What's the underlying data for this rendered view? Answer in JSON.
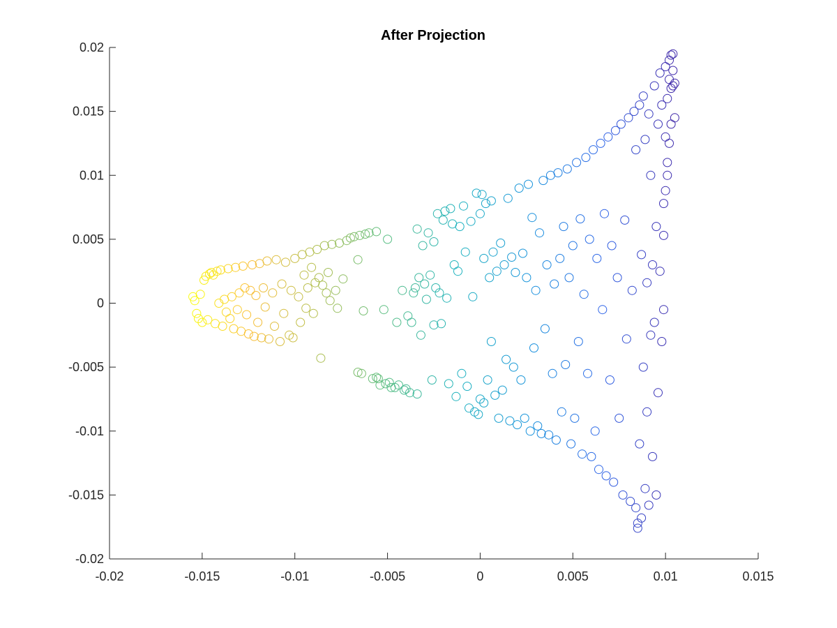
{
  "chart_data": {
    "type": "scatter",
    "title": "After Projection",
    "xlabel": "",
    "ylabel": "",
    "xlim": [
      -0.02,
      0.015
    ],
    "ylim": [
      -0.02,
      0.02
    ],
    "xticks": [
      -0.02,
      -0.015,
      -0.01,
      -0.005,
      0,
      0.005,
      0.01,
      0.015
    ],
    "xtick_labels": [
      "-0.02",
      "-0.015",
      "-0.01",
      "-0.005",
      "0",
      "0.005",
      "0.01",
      "0.015"
    ],
    "yticks": [
      -0.02,
      -0.015,
      -0.01,
      -0.005,
      0,
      0.005,
      0.01,
      0.015,
      0.02
    ],
    "ytick_labels": [
      "-0.02",
      "-0.015",
      "-0.01",
      "-0.005",
      "0",
      "0.005",
      "0.01",
      "0.015",
      "0.02"
    ],
    "grid": false,
    "marker": "open-circle",
    "colormap": "parula",
    "color_encoding": "marker color varies from yellow at the left (x ≈ -0.0155) to dark blue at the right (x ≈ 0.0105)",
    "colors": {
      "axis": "#262626",
      "background": "#ffffff"
    },
    "points": [
      [
        -0.0155,
        0.0005
      ],
      [
        -0.0154,
        0.0002
      ],
      [
        -0.0153,
        -0.0008
      ],
      [
        -0.0152,
        -0.0012
      ],
      [
        -0.0151,
        0.0007
      ],
      [
        -0.015,
        -0.0015
      ],
      [
        -0.0149,
        0.0018
      ],
      [
        -0.0148,
        0.0021
      ],
      [
        -0.0147,
        -0.0013
      ],
      [
        -0.0146,
        0.0023
      ],
      [
        -0.0145,
        0.0024
      ],
      [
        -0.0144,
        0.0022
      ],
      [
        -0.0143,
        -0.0016
      ],
      [
        -0.0142,
        0.0025
      ],
      [
        -0.0141,
        0.0
      ],
      [
        -0.014,
        0.0026
      ],
      [
        -0.0139,
        -0.0018
      ],
      [
        -0.0138,
        0.0003
      ],
      [
        -0.0137,
        -0.0007
      ],
      [
        -0.0136,
        0.0027
      ],
      [
        -0.0135,
        -0.0012
      ],
      [
        -0.0134,
        0.0005
      ],
      [
        -0.0133,
        -0.002
      ],
      [
        -0.0132,
        0.0028
      ],
      [
        -0.0131,
        -0.0005
      ],
      [
        -0.013,
        0.0008
      ],
      [
        -0.0129,
        -0.0022
      ],
      [
        -0.0128,
        0.0029
      ],
      [
        -0.0127,
        0.0012
      ],
      [
        -0.0126,
        -0.0009
      ],
      [
        -0.0125,
        -0.0024
      ],
      [
        -0.0124,
        0.001
      ],
      [
        -0.0123,
        0.003
      ],
      [
        -0.0122,
        -0.0026
      ],
      [
        -0.0121,
        0.0006
      ],
      [
        -0.012,
        -0.0015
      ],
      [
        -0.0119,
        0.0031
      ],
      [
        -0.0118,
        -0.0027
      ],
      [
        -0.0117,
        0.0012
      ],
      [
        -0.0116,
        -0.0003
      ],
      [
        -0.0115,
        0.0033
      ],
      [
        -0.0114,
        -0.0028
      ],
      [
        -0.0112,
        0.0008
      ],
      [
        -0.0111,
        -0.0018
      ],
      [
        -0.011,
        0.0034
      ],
      [
        -0.0108,
        -0.003
      ],
      [
        -0.0107,
        0.0015
      ],
      [
        -0.0106,
        -0.0008
      ],
      [
        -0.0105,
        0.0032
      ],
      [
        -0.0103,
        -0.0025
      ],
      [
        -0.0102,
        0.001
      ],
      [
        -0.0101,
        -0.0027
      ],
      [
        -0.01,
        0.0035
      ],
      [
        -0.0098,
        0.0005
      ],
      [
        -0.0097,
        -0.0015
      ],
      [
        -0.0096,
        0.0038
      ],
      [
        -0.0095,
        0.0022
      ],
      [
        -0.0094,
        -0.0004
      ],
      [
        -0.0093,
        0.0012
      ],
      [
        -0.0092,
        0.004
      ],
      [
        -0.0091,
        0.0028
      ],
      [
        -0.009,
        -0.0008
      ],
      [
        -0.0089,
        0.0016
      ],
      [
        -0.0088,
        0.0042
      ],
      [
        -0.0087,
        0.002
      ],
      [
        -0.0086,
        -0.0043
      ],
      [
        -0.0085,
        0.0014
      ],
      [
        -0.0084,
        0.0045
      ],
      [
        -0.0083,
        0.0008
      ],
      [
        -0.0082,
        0.0024
      ],
      [
        -0.0081,
        0.0002
      ],
      [
        -0.008,
        0.0046
      ],
      [
        -0.0078,
        0.001
      ],
      [
        -0.0077,
        -0.0004
      ],
      [
        -0.0076,
        0.0047
      ],
      [
        -0.0074,
        0.0019
      ],
      [
        -0.0072,
        0.0049
      ],
      [
        -0.007,
        0.0051
      ],
      [
        -0.0068,
        0.0052
      ],
      [
        -0.0066,
        -0.0054
      ],
      [
        -0.0066,
        0.0034
      ],
      [
        -0.0065,
        0.0053
      ],
      [
        -0.0064,
        -0.0055
      ],
      [
        -0.0063,
        -0.0006
      ],
      [
        -0.0062,
        0.0054
      ],
      [
        -0.006,
        0.0055
      ],
      [
        -0.0058,
        -0.0059
      ],
      [
        -0.0056,
        0.0056
      ],
      [
        -0.0056,
        -0.0058
      ],
      [
        -0.0055,
        -0.0059
      ],
      [
        -0.0054,
        -0.0064
      ],
      [
        -0.0052,
        -0.0005
      ],
      [
        -0.0051,
        -0.0063
      ],
      [
        -0.005,
        0.005
      ],
      [
        -0.0049,
        -0.0062
      ],
      [
        -0.0048,
        -0.0066
      ],
      [
        -0.0046,
        -0.0066
      ],
      [
        -0.0045,
        -0.0015
      ],
      [
        -0.0044,
        -0.0064
      ],
      [
        -0.0042,
        0.001
      ],
      [
        -0.0041,
        -0.0068
      ],
      [
        -0.004,
        -0.0067
      ],
      [
        -0.0039,
        -0.001
      ],
      [
        -0.0038,
        -0.007
      ],
      [
        -0.0037,
        -0.0015
      ],
      [
        -0.0036,
        0.0008
      ],
      [
        -0.0035,
        0.0012
      ],
      [
        -0.0034,
        0.0058
      ],
      [
        -0.0034,
        -0.0071
      ],
      [
        -0.0033,
        0.002
      ],
      [
        -0.0032,
        -0.0025
      ],
      [
        -0.0031,
        0.0045
      ],
      [
        -0.003,
        0.0015
      ],
      [
        -0.0029,
        0.0003
      ],
      [
        -0.0028,
        0.0055
      ],
      [
        -0.0027,
        0.0022
      ],
      [
        -0.0026,
        -0.006
      ],
      [
        -0.0025,
        0.0048
      ],
      [
        -0.0025,
        -0.0017
      ],
      [
        -0.0024,
        0.0012
      ],
      [
        -0.0023,
        0.007
      ],
      [
        -0.0022,
        0.0008
      ],
      [
        -0.0021,
        -0.0016
      ],
      [
        -0.002,
        0.0065
      ],
      [
        -0.0019,
        0.0072
      ],
      [
        -0.0018,
        0.0004
      ],
      [
        -0.0017,
        -0.0063
      ],
      [
        -0.0016,
        0.0074
      ],
      [
        -0.0015,
        0.0062
      ],
      [
        -0.0014,
        0.003
      ],
      [
        -0.0013,
        -0.0073
      ],
      [
        -0.0012,
        0.0025
      ],
      [
        -0.0011,
        0.006
      ],
      [
        -0.001,
        -0.0055
      ],
      [
        -0.0009,
        0.0076
      ],
      [
        -0.0008,
        0.004
      ],
      [
        -0.0007,
        -0.0065
      ],
      [
        -0.0006,
        -0.0082
      ],
      [
        -0.0005,
        0.0064
      ],
      [
        -0.0004,
        0.0005
      ],
      [
        -0.0003,
        -0.0085
      ],
      [
        -0.0002,
        0.0086
      ],
      [
        -0.0001,
        -0.0087
      ],
      [
        0.0,
        0.007
      ],
      [
        0.0,
        -0.0075
      ],
      [
        0.0001,
        0.0085
      ],
      [
        0.0002,
        0.0035
      ],
      [
        0.0002,
        -0.0078
      ],
      [
        0.0003,
        0.0078
      ],
      [
        0.0004,
        -0.006
      ],
      [
        0.0005,
        0.002
      ],
      [
        0.0006,
        0.008
      ],
      [
        0.0006,
        -0.003
      ],
      [
        0.0007,
        0.004
      ],
      [
        0.0008,
        -0.0072
      ],
      [
        0.0009,
        0.0025
      ],
      [
        0.001,
        -0.009
      ],
      [
        0.0011,
        0.0047
      ],
      [
        0.0012,
        -0.0068
      ],
      [
        0.0013,
        0.003
      ],
      [
        0.0014,
        -0.0044
      ],
      [
        0.0015,
        0.0082
      ],
      [
        0.0016,
        -0.0092
      ],
      [
        0.0017,
        0.0036
      ],
      [
        0.0018,
        -0.005
      ],
      [
        0.0019,
        0.0024
      ],
      [
        0.002,
        -0.0095
      ],
      [
        0.0021,
        0.009
      ],
      [
        0.0022,
        -0.006
      ],
      [
        0.0023,
        0.0039
      ],
      [
        0.0024,
        -0.009
      ],
      [
        0.0025,
        0.002
      ],
      [
        0.0026,
        0.0093
      ],
      [
        0.0027,
        -0.01
      ],
      [
        0.0028,
        0.0067
      ],
      [
        0.0029,
        -0.0035
      ],
      [
        0.003,
        0.001
      ],
      [
        0.0031,
        -0.0096
      ],
      [
        0.0032,
        0.0055
      ],
      [
        0.0033,
        -0.0102
      ],
      [
        0.0034,
        0.0096
      ],
      [
        0.0035,
        -0.002
      ],
      [
        0.0036,
        0.003
      ],
      [
        0.0037,
        -0.0103
      ],
      [
        0.0038,
        0.01
      ],
      [
        0.0039,
        -0.0055
      ],
      [
        0.004,
        0.0015
      ],
      [
        0.0041,
        -0.0107
      ],
      [
        0.0042,
        0.0102
      ],
      [
        0.0043,
        0.0035
      ],
      [
        0.0044,
        -0.0085
      ],
      [
        0.0045,
        0.006
      ],
      [
        0.0046,
        -0.0048
      ],
      [
        0.0047,
        0.0105
      ],
      [
        0.0048,
        0.002
      ],
      [
        0.0049,
        -0.011
      ],
      [
        0.005,
        0.0045
      ],
      [
        0.0051,
        -0.009
      ],
      [
        0.0052,
        0.011
      ],
      [
        0.0053,
        -0.003
      ],
      [
        0.0054,
        0.0066
      ],
      [
        0.0055,
        -0.0118
      ],
      [
        0.0056,
        0.0007
      ],
      [
        0.0057,
        0.0114
      ],
      [
        0.0058,
        -0.0055
      ],
      [
        0.0059,
        0.005
      ],
      [
        0.006,
        -0.012
      ],
      [
        0.0061,
        0.012
      ],
      [
        0.0062,
        -0.01
      ],
      [
        0.0063,
        0.0035
      ],
      [
        0.0064,
        -0.013
      ],
      [
        0.0065,
        0.0125
      ],
      [
        0.0066,
        -0.0005
      ],
      [
        0.0067,
        0.007
      ],
      [
        0.0068,
        -0.0135
      ],
      [
        0.0069,
        0.013
      ],
      [
        0.007,
        -0.006
      ],
      [
        0.0071,
        0.0045
      ],
      [
        0.0072,
        -0.014
      ],
      [
        0.0073,
        0.0135
      ],
      [
        0.0074,
        0.002
      ],
      [
        0.0075,
        -0.009
      ],
      [
        0.0076,
        0.014
      ],
      [
        0.0077,
        -0.015
      ],
      [
        0.0078,
        0.0065
      ],
      [
        0.0079,
        -0.0028
      ],
      [
        0.008,
        0.0145
      ],
      [
        0.0081,
        -0.0155
      ],
      [
        0.0082,
        0.001
      ],
      [
        0.0083,
        0.015
      ],
      [
        0.0084,
        -0.016
      ],
      [
        0.0084,
        0.012
      ],
      [
        0.0085,
        -0.0176
      ],
      [
        0.0085,
        -0.0172
      ],
      [
        0.0086,
        0.0155
      ],
      [
        0.0086,
        -0.011
      ],
      [
        0.0087,
        0.0038
      ],
      [
        0.0087,
        -0.0168
      ],
      [
        0.0088,
        0.0162
      ],
      [
        0.0088,
        -0.005
      ],
      [
        0.0089,
        0.0128
      ],
      [
        0.0089,
        -0.0145
      ],
      [
        0.009,
        0.0016
      ],
      [
        0.009,
        -0.0085
      ],
      [
        0.0091,
        0.0148
      ],
      [
        0.0091,
        -0.0158
      ],
      [
        0.0092,
        0.01
      ],
      [
        0.0092,
        -0.0025
      ],
      [
        0.0093,
        0.003
      ],
      [
        0.0093,
        -0.012
      ],
      [
        0.0094,
        0.017
      ],
      [
        0.0094,
        -0.0015
      ],
      [
        0.0095,
        0.006
      ],
      [
        0.0095,
        -0.015
      ],
      [
        0.0096,
        0.014
      ],
      [
        0.0096,
        -0.007
      ],
      [
        0.0097,
        0.0025
      ],
      [
        0.0097,
        0.018
      ],
      [
        0.0098,
        -0.003
      ],
      [
        0.0098,
        0.0155
      ],
      [
        0.0099,
        0.0053
      ],
      [
        0.0099,
        -0.0005
      ],
      [
        0.01,
        0.0185
      ],
      [
        0.01,
        0.013
      ],
      [
        0.0101,
        0.016
      ],
      [
        0.0101,
        0.01
      ],
      [
        0.0102,
        0.019
      ],
      [
        0.0102,
        0.0175
      ],
      [
        0.0103,
        0.0194
      ],
      [
        0.0103,
        0.014
      ],
      [
        0.0104,
        0.0195
      ],
      [
        0.0104,
        0.017
      ],
      [
        0.0105,
        0.0172
      ],
      [
        0.0105,
        0.0145
      ],
      [
        0.0104,
        0.0182
      ],
      [
        0.0103,
        0.0168
      ],
      [
        0.0102,
        0.0125
      ],
      [
        0.0101,
        0.011
      ],
      [
        0.01,
        0.0088
      ],
      [
        0.0099,
        0.0078
      ]
    ]
  }
}
